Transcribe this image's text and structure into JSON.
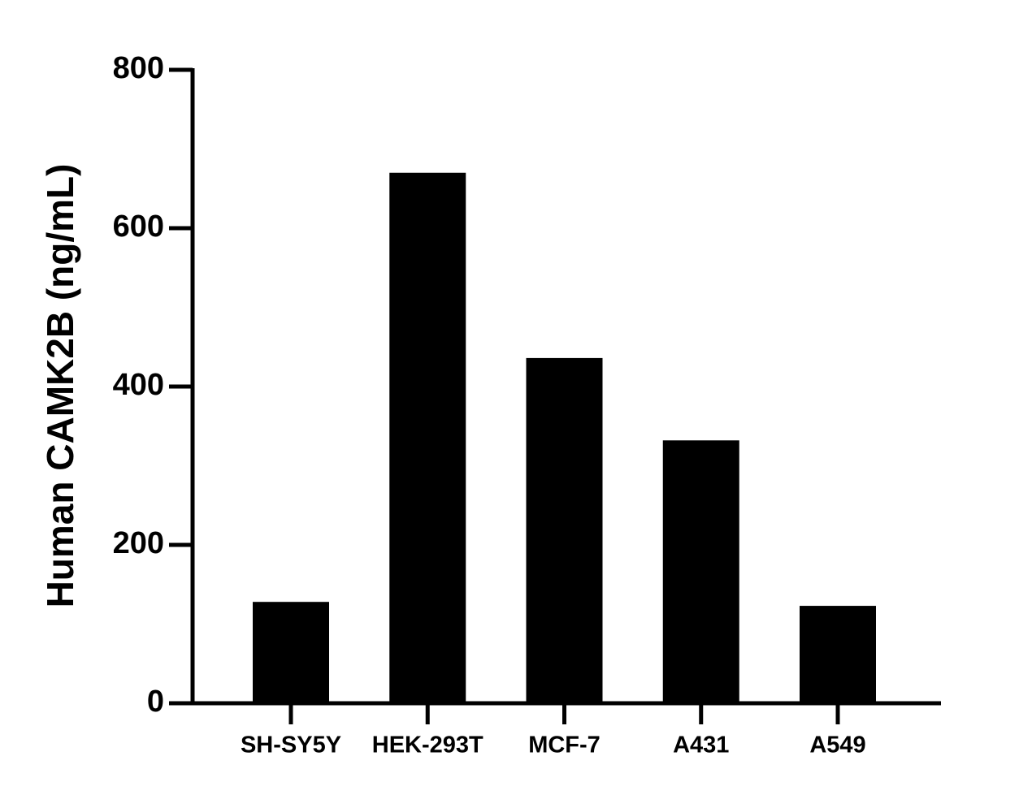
{
  "chart_data": {
    "type": "bar",
    "y_label": "Human CAMK2B (ng/mL)",
    "categories": [
      "SH-SY5Y",
      "HEK-293T",
      "MCF-7",
      "A431",
      "A549"
    ],
    "values": [
      128,
      670,
      436,
      332,
      123
    ],
    "color": "#000000",
    "ylim": [
      0,
      800
    ],
    "yticks": [
      0,
      200,
      400,
      600,
      800
    ],
    "grid": false
  }
}
